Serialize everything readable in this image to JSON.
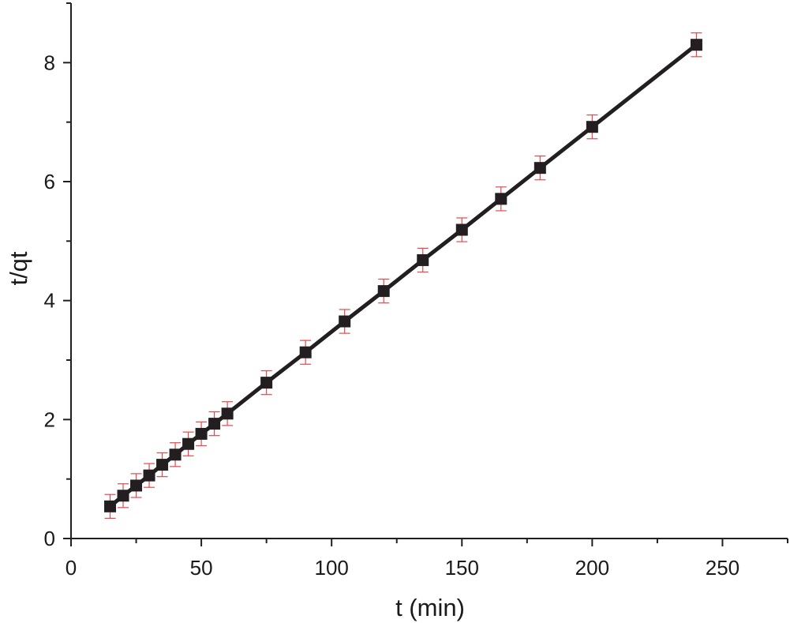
{
  "colors": {
    "series_line": "#231f20",
    "marker": "#231f20",
    "error_bar": "#e8474c",
    "axis": "#231f20"
  },
  "chart_data": {
    "type": "line",
    "xlabel": "t (min)",
    "ylabel": "t/qt",
    "xlim": [
      0,
      275
    ],
    "ylim": [
      0,
      9
    ],
    "x_ticks": [
      0,
      50,
      100,
      150,
      200,
      250
    ],
    "x_tick_labels": [
      "0",
      "50",
      "100",
      "150",
      "200",
      "250"
    ],
    "y_ticks": [
      0,
      2,
      4,
      6,
      8
    ],
    "y_tick_labels": [
      "0",
      "2",
      "4",
      "6",
      "8"
    ],
    "grid": false,
    "legend": "none",
    "marker": "square",
    "series": [
      {
        "x": [
          15,
          20,
          25,
          30,
          35,
          40,
          45,
          50,
          55,
          60,
          75,
          90,
          105,
          120,
          135,
          150,
          165,
          180,
          200,
          240
        ],
        "y": [
          0.54,
          0.72,
          0.89,
          1.06,
          1.24,
          1.41,
          1.59,
          1.76,
          1.93,
          2.1,
          2.62,
          3.13,
          3.65,
          4.16,
          4.68,
          5.19,
          5.71,
          6.23,
          6.92,
          8.3
        ],
        "error": [
          0.2,
          0.2,
          0.2,
          0.2,
          0.2,
          0.2,
          0.2,
          0.2,
          0.2,
          0.2,
          0.2,
          0.2,
          0.2,
          0.2,
          0.2,
          0.2,
          0.2,
          0.2,
          0.2,
          0.2
        ]
      }
    ]
  }
}
